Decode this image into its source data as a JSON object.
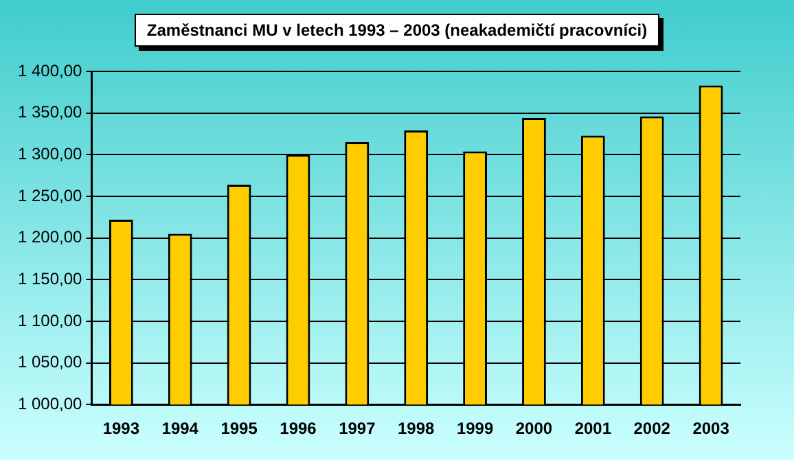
{
  "chart_data": {
    "type": "bar",
    "title": "Zaměstnanci MU v letech 1993 – 2003 (neakademičtí pracovníci)",
    "categories": [
      "1993",
      "1994",
      "1995",
      "1996",
      "1997",
      "1998",
      "1999",
      "2000",
      "2001",
      "2002",
      "2003"
    ],
    "values": [
      1222,
      1205,
      1264,
      1300,
      1315,
      1329,
      1304,
      1344,
      1323,
      1346,
      1383
    ],
    "color": "#ffcc00",
    "ylim": [
      1000,
      1400
    ],
    "yticks": [
      {
        "value": 1000,
        "label": "1 000,00"
      },
      {
        "value": 1050,
        "label": "1 050,00"
      },
      {
        "value": 1100,
        "label": "1 100,00"
      },
      {
        "value": 1150,
        "label": "1 150,00"
      },
      {
        "value": 1200,
        "label": "1 200,00"
      },
      {
        "value": 1250,
        "label": "1 250,00"
      },
      {
        "value": 1300,
        "label": "1 300,00"
      },
      {
        "value": 1350,
        "label": "1 350,00"
      },
      {
        "value": 1400,
        "label": "1 400,00"
      }
    ],
    "grid": "y",
    "legend": false
  }
}
